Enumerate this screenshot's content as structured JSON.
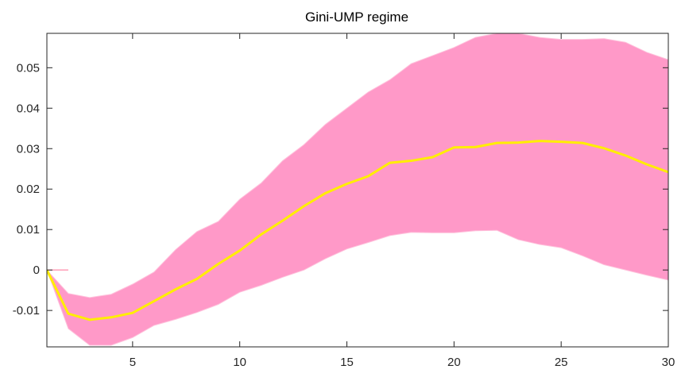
{
  "chart_data": {
    "type": "area",
    "title": "Gini-UMP regime",
    "xlabel": "",
    "ylabel": "",
    "xlim": [
      1,
      30
    ],
    "ylim": [
      -0.019,
      0.0585
    ],
    "x_ticks": [
      5,
      10,
      15,
      20,
      25,
      30
    ],
    "x_tick_labels": [
      "5",
      "10",
      "15",
      "20",
      "25",
      "30"
    ],
    "y_ticks": [
      -0.01,
      0,
      0.01,
      0.02,
      0.03,
      0.04,
      0.05
    ],
    "y_tick_labels": [
      "-0.01",
      "0",
      "0.01",
      "0.02",
      "0.03",
      "0.04",
      "0.05"
    ],
    "grid": false,
    "legend": "none",
    "x": [
      1,
      2,
      3,
      4,
      5,
      6,
      7,
      8,
      9,
      10,
      11,
      12,
      13,
      14,
      15,
      16,
      17,
      18,
      19,
      20,
      21,
      22,
      23,
      24,
      25,
      26,
      27,
      28,
      29,
      30
    ],
    "series": [
      {
        "role": "upper-band",
        "values": [
          0,
          -0.0058,
          -0.0068,
          -0.006,
          -0.0035,
          -0.0005,
          0.005,
          0.0095,
          0.012,
          0.0175,
          0.0215,
          0.027,
          0.031,
          0.036,
          0.04,
          0.044,
          0.047,
          0.051,
          0.053,
          0.055,
          0.0575,
          0.0585,
          0.0585,
          0.0575,
          0.057,
          0.057,
          0.0572,
          0.0563,
          0.0538,
          0.052
        ]
      },
      {
        "role": "lower-band",
        "values": [
          0,
          -0.0145,
          -0.0186,
          -0.0186,
          -0.0167,
          -0.0137,
          -0.0122,
          -0.0105,
          -0.0085,
          -0.0055,
          -0.0038,
          -0.0018,
          0.0,
          0.0028,
          0.0052,
          0.0068,
          0.0085,
          0.0093,
          0.0092,
          0.0092,
          0.0097,
          0.0098,
          0.0075,
          0.0063,
          0.0055,
          0.0035,
          0.0013,
          0.0,
          -0.0013,
          -0.0025
        ]
      },
      {
        "role": "median",
        "values": [
          0,
          -0.0108,
          -0.0123,
          -0.0117,
          -0.0106,
          -0.0077,
          -0.0048,
          -0.0022,
          0.0015,
          0.0048,
          0.0088,
          0.0122,
          0.0158,
          0.019,
          0.0213,
          0.0232,
          0.0265,
          0.027,
          0.0279,
          0.0303,
          0.0304,
          0.0314,
          0.0315,
          0.0319,
          0.0317,
          0.0314,
          0.0301,
          0.0283,
          0.0261,
          0.0242
        ]
      }
    ],
    "zero_line": {
      "x": [
        1,
        2
      ],
      "y": [
        0,
        0
      ]
    },
    "colors": {
      "band": "#ff99c8",
      "band_edge": "#ffc2dc",
      "median": "#ffee00",
      "zero_line": "#ff8aa8",
      "axis": "#262626",
      "background": "#ffffff"
    }
  }
}
